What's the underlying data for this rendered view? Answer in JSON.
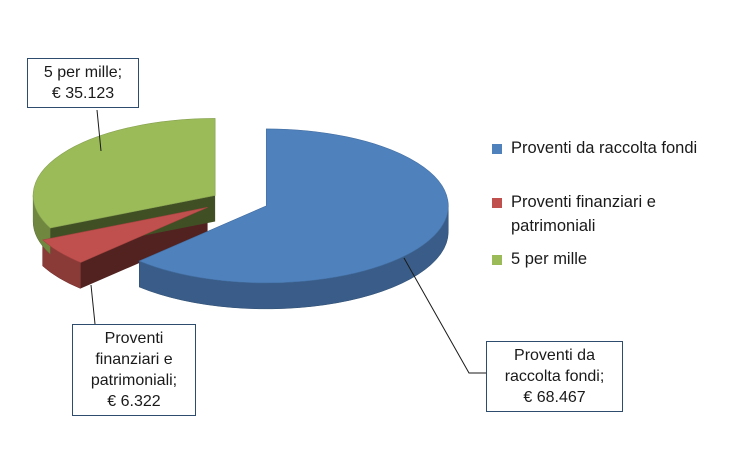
{
  "chart_data": {
    "type": "pie",
    "title": "",
    "labels": [
      "Proventi da raccolta fondi",
      "Proventi finanziari e patrimoniali",
      "5 per mille"
    ],
    "values": [
      68467,
      6322,
      35123
    ],
    "value_labels": [
      "€ 68.467",
      "€ 6.322",
      "€ 35.123"
    ],
    "colors": [
      "#4f81bd",
      "#c0504d",
      "#9bbb59"
    ],
    "exploded": true,
    "three_d": true,
    "legend_position": "right",
    "callouts": [
      {
        "lines": [
          "Proventi da",
          "raccolta fondi;",
          "€ 68.467"
        ]
      },
      {
        "lines": [
          "Proventi",
          "finanziari e",
          "patrimoniali;",
          "€ 6.322"
        ]
      },
      {
        "lines": [
          "5 per mille;",
          "€ 35.123"
        ]
      }
    ],
    "legend": [
      {
        "lines": [
          "Proventi da raccolta fondi"
        ]
      },
      {
        "lines": [
          "Proventi finanziari e",
          "patrimoniali"
        ]
      },
      {
        "lines": [
          "5 per mille"
        ]
      }
    ]
  }
}
